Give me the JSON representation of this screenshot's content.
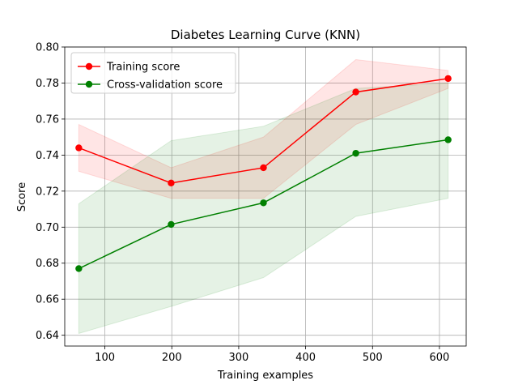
{
  "chart_data": {
    "type": "line",
    "title": "Diabetes Learning Curve (KNN)",
    "xlabel": "Training examples",
    "ylabel": "Score",
    "xlim": [
      40,
      640
    ],
    "ylim": [
      0.634,
      0.8
    ],
    "xticks": [
      100,
      200,
      300,
      400,
      500,
      600
    ],
    "yticks": [
      0.64,
      0.66,
      0.68,
      0.7,
      0.72,
      0.74,
      0.76,
      0.78,
      0.8
    ],
    "ytick_labels": [
      "0.64",
      "0.66",
      "0.68",
      "0.70",
      "0.72",
      "0.74",
      "0.76",
      "0.78",
      "0.80"
    ],
    "grid": true,
    "legend_position": "top-left",
    "x": [
      61,
      199,
      337,
      475,
      613
    ],
    "series": [
      {
        "name": "Training score",
        "color": "#ff0000",
        "values": [
          0.744,
          0.7245,
          0.733,
          0.775,
          0.7825
        ],
        "band_lower": [
          0.731,
          0.716,
          0.716,
          0.757,
          0.777
        ],
        "band_upper": [
          0.757,
          0.733,
          0.75,
          0.793,
          0.787
        ]
      },
      {
        "name": "Cross-validation score",
        "color": "#008000",
        "values": [
          0.677,
          0.7015,
          0.7135,
          0.741,
          0.7485
        ],
        "band_lower": [
          0.641,
          0.656,
          0.672,
          0.706,
          0.716
        ],
        "band_upper": [
          0.713,
          0.748,
          0.756,
          0.777,
          0.78
        ]
      }
    ]
  }
}
